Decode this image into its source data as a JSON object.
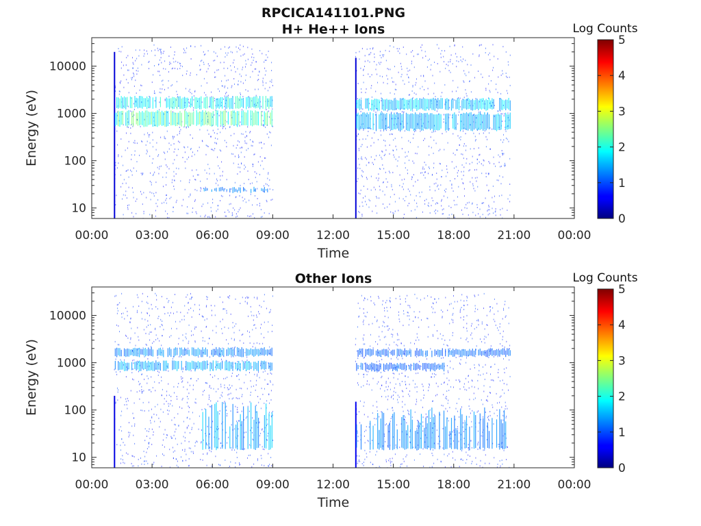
{
  "figure": {
    "title": "RPCICA141101.PNG"
  },
  "chart_data": [
    {
      "type": "heatmap",
      "title": "H+ He++ Ions",
      "xlabel": "Time",
      "ylabel": "Energy (eV)",
      "x_ticks": [
        "00:00",
        "03:00",
        "06:00",
        "09:00",
        "12:00",
        "15:00",
        "18:00",
        "21:00",
        "00:00"
      ],
      "xlim_hours": [
        0,
        24
      ],
      "y_scale": "log",
      "y_ticks": [
        10,
        100,
        1000,
        10000
      ],
      "y_tick_labels": [
        "10",
        "100",
        "1000",
        "10000"
      ],
      "ylim": [
        6,
        40000
      ],
      "colorbar": {
        "label": "Log Counts",
        "range": [
          0,
          5
        ],
        "ticks": [
          "0",
          "1",
          "2",
          "3",
          "4",
          "5"
        ],
        "colormap": "jet"
      },
      "data_intervals_hours": [
        [
          1.1,
          9.0
        ],
        [
          13.1,
          20.8
        ]
      ],
      "features": [
        {
          "kind": "burst",
          "start_hour": 1.1,
          "end_hour": 1.15,
          "energy_range_eV": [
            6,
            20000
          ],
          "intensity": 0.3
        },
        {
          "kind": "band",
          "start_hour": 1.15,
          "end_hour": 9.0,
          "energy_range_eV": [
            1300,
            2200
          ],
          "intensity": 1.5
        },
        {
          "kind": "band",
          "start_hour": 1.15,
          "end_hour": 9.0,
          "energy_range_eV": [
            550,
            1100
          ],
          "intensity": 1.8
        },
        {
          "kind": "burst",
          "start_hour": 13.1,
          "end_hour": 13.15,
          "energy_range_eV": [
            6,
            15000
          ],
          "intensity": 0.3
        },
        {
          "kind": "band",
          "start_hour": 13.15,
          "end_hour": 20.8,
          "energy_range_eV": [
            1200,
            2000
          ],
          "intensity": 1.2
        },
        {
          "kind": "band",
          "start_hour": 13.15,
          "end_hour": 20.8,
          "energy_range_eV": [
            450,
            1000
          ],
          "intensity": 1.1
        },
        {
          "kind": "low_energy_band",
          "start_hour": 5.5,
          "end_hour": 9.0,
          "energy_range_eV": [
            22,
            28
          ],
          "intensity": 0.8
        }
      ]
    },
    {
      "type": "heatmap",
      "title": "Other Ions",
      "xlabel": "Time",
      "ylabel": "Energy (eV)",
      "x_ticks": [
        "00:00",
        "03:00",
        "06:00",
        "09:00",
        "12:00",
        "15:00",
        "18:00",
        "21:00",
        "00:00"
      ],
      "xlim_hours": [
        0,
        24
      ],
      "y_scale": "log",
      "y_ticks": [
        10,
        100,
        1000,
        10000
      ],
      "y_tick_labels": [
        "10",
        "100",
        "1000",
        "10000"
      ],
      "ylim": [
        6,
        40000
      ],
      "colorbar": {
        "label": "Log Counts",
        "range": [
          0,
          5
        ],
        "ticks": [
          "0",
          "1",
          "2",
          "3",
          "4",
          "5"
        ],
        "colormap": "jet"
      },
      "data_intervals_hours": [
        [
          1.1,
          9.0
        ],
        [
          13.1,
          20.8
        ]
      ],
      "features": [
        {
          "kind": "burst",
          "start_hour": 1.1,
          "end_hour": 1.15,
          "energy_range_eV": [
            6,
            200
          ],
          "intensity": 0.4
        },
        {
          "kind": "band",
          "start_hour": 1.15,
          "end_hour": 9.0,
          "energy_range_eV": [
            1400,
            2000
          ],
          "intensity": 0.8
        },
        {
          "kind": "band",
          "start_hour": 1.15,
          "end_hour": 9.0,
          "energy_range_eV": [
            700,
            1050
          ],
          "intensity": 1.0
        },
        {
          "kind": "low_energy_activity",
          "start_hour": 5.5,
          "end_hour": 9.0,
          "energy_range_eV": [
            15,
            150
          ],
          "intensity": 1.0
        },
        {
          "kind": "burst",
          "start_hour": 13.1,
          "end_hour": 13.15,
          "energy_range_eV": [
            6,
            150
          ],
          "intensity": 0.5
        },
        {
          "kind": "band",
          "start_hour": 13.15,
          "end_hour": 20.8,
          "energy_range_eV": [
            1400,
            1900
          ],
          "intensity": 0.6
        },
        {
          "kind": "band",
          "start_hour": 13.15,
          "end_hour": 17.5,
          "energy_range_eV": [
            700,
            950
          ],
          "intensity": 0.6
        },
        {
          "kind": "low_energy_activity",
          "start_hour": 13.15,
          "end_hour": 20.8,
          "energy_range_eV": [
            15,
            120
          ],
          "intensity": 0.8
        }
      ]
    }
  ]
}
